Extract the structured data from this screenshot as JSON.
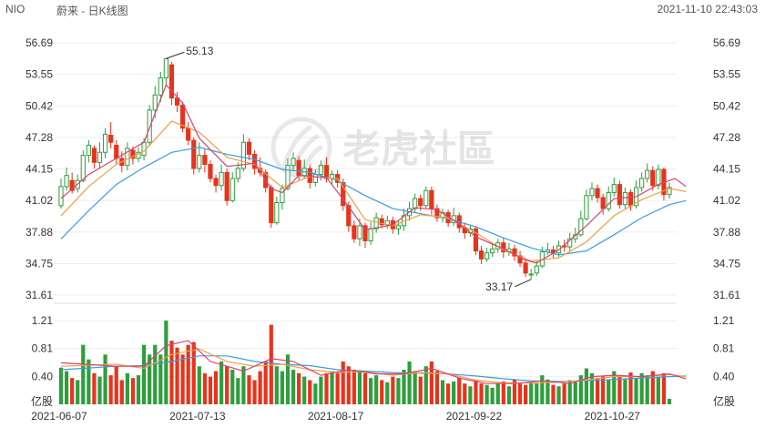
{
  "header": {
    "symbol": "NIO",
    "title": "蔚来 - 日K线图",
    "datetime": "2021-11-10 22:43:03"
  },
  "watermark": {
    "text": "老虎社區",
    "icon": "tiger-claw-logo-icon"
  },
  "colors": {
    "up": "#2e9e3e",
    "down": "#e8331c",
    "ma5": "#d9436e",
    "ma10": "#f0a043",
    "ma20": "#3a9de0",
    "grid": "#eeeeee",
    "axis_text": "#333333"
  },
  "chart_data": {
    "type": "candlestick",
    "price_axis": {
      "ticks": [
        "56.69",
        "53.55",
        "50.42",
        "47.28",
        "44.15",
        "41.02",
        "37.88",
        "34.75",
        "31.61"
      ],
      "range": [
        31.61,
        56.69
      ]
    },
    "volume_axis": {
      "ticks": [
        "1.21",
        "0.81",
        "0.40"
      ],
      "unit": "亿股",
      "range": [
        0,
        1.33
      ]
    },
    "x_ticks": [
      {
        "index": 0,
        "label": "2021-06-07"
      },
      {
        "index": 25,
        "label": "2021-07-13"
      },
      {
        "index": 50,
        "label": "2021-08-17"
      },
      {
        "index": 75,
        "label": "2021-09-22"
      },
      {
        "index": 100,
        "label": "2021-10-27"
      }
    ],
    "annotations": [
      {
        "label": "55.13",
        "index": 19,
        "value": 55.13
      },
      {
        "label": "33.17",
        "index": 85,
        "value": 33.17
      }
    ],
    "candles": [
      [
        40.5,
        42.4,
        43.2,
        40.2,
        0.53
      ],
      [
        42.4,
        43.5,
        44.3,
        42.0,
        0.48
      ],
      [
        43.0,
        42.0,
        43.8,
        41.7,
        0.38
      ],
      [
        42.2,
        43.0,
        43.6,
        41.8,
        0.35
      ],
      [
        43.0,
        45.5,
        46.0,
        42.8,
        0.86
      ],
      [
        45.5,
        46.5,
        47.0,
        44.8,
        0.65
      ],
      [
        46.2,
        44.8,
        46.5,
        44.2,
        0.45
      ],
      [
        44.8,
        45.8,
        46.8,
        44.3,
        0.4
      ],
      [
        45.8,
        47.6,
        48.2,
        45.2,
        0.72
      ],
      [
        47.5,
        46.8,
        48.8,
        46.2,
        0.42
      ],
      [
        46.5,
        45.2,
        47.0,
        44.6,
        0.55
      ],
      [
        45.2,
        44.5,
        45.9,
        43.8,
        0.35
      ],
      [
        44.5,
        46.2,
        46.8,
        44.0,
        0.45
      ],
      [
        46.0,
        45.2,
        46.4,
        44.6,
        0.38
      ],
      [
        45.2,
        45.8,
        46.3,
        44.8,
        0.42
      ],
      [
        45.5,
        46.8,
        47.2,
        45.0,
        0.86
      ],
      [
        46.8,
        50.0,
        50.5,
        46.4,
        0.72
      ],
      [
        50.0,
        51.5,
        52.4,
        49.2,
        0.86
      ],
      [
        51.5,
        53.2,
        53.8,
        50.8,
        0.72
      ],
      [
        53.2,
        55.1,
        55.13,
        52.4,
        1.21
      ],
      [
        54.5,
        51.2,
        54.8,
        50.5,
        0.92
      ],
      [
        51.2,
        50.5,
        51.8,
        49.8,
        0.82
      ],
      [
        50.5,
        48.2,
        50.8,
        47.8,
        0.72
      ],
      [
        48.2,
        47.0,
        48.8,
        46.5,
        0.86
      ],
      [
        47.0,
        44.2,
        47.3,
        43.6,
        0.9
      ],
      [
        44.2,
        45.5,
        46.8,
        43.8,
        0.55
      ],
      [
        45.5,
        44.6,
        46.2,
        43.8,
        0.45
      ],
      [
        44.6,
        43.2,
        45.0,
        42.8,
        0.4
      ],
      [
        43.2,
        42.5,
        43.6,
        41.8,
        0.48
      ],
      [
        42.5,
        43.8,
        44.6,
        42.0,
        0.62
      ],
      [
        43.8,
        41.0,
        44.2,
        40.5,
        0.55
      ],
      [
        41.0,
        43.2,
        43.8,
        40.8,
        0.5
      ],
      [
        43.2,
        44.2,
        44.8,
        42.8,
        0.38
      ],
      [
        44.2,
        46.8,
        47.6,
        43.9,
        0.55
      ],
      [
        46.8,
        45.6,
        47.2,
        45.0,
        0.42
      ],
      [
        45.6,
        44.2,
        46.0,
        43.6,
        0.35
      ],
      [
        44.2,
        43.8,
        45.3,
        43.4,
        0.48
      ],
      [
        43.8,
        42.3,
        44.1,
        41.8,
        0.62
      ],
      [
        42.3,
        38.8,
        42.6,
        38.3,
        1.15
      ],
      [
        38.8,
        40.8,
        41.4,
        38.6,
        0.55
      ],
      [
        40.8,
        42.2,
        42.6,
        40.1,
        0.48
      ],
      [
        42.2,
        44.5,
        45.2,
        42.0,
        0.72
      ],
      [
        44.5,
        45.2,
        45.8,
        44.0,
        0.5
      ],
      [
        45.0,
        43.5,
        45.4,
        43.0,
        0.45
      ],
      [
        43.5,
        44.2,
        45.1,
        43.2,
        0.4
      ],
      [
        44.2,
        42.8,
        44.6,
        42.2,
        0.35
      ],
      [
        42.8,
        43.6,
        44.1,
        42.4,
        0.3
      ],
      [
        43.6,
        44.5,
        45.0,
        43.0,
        0.4
      ],
      [
        44.5,
        43.2,
        45.3,
        42.8,
        0.45
      ],
      [
        43.2,
        43.6,
        44.0,
        42.6,
        0.48
      ],
      [
        43.6,
        42.8,
        44.0,
        42.3,
        0.45
      ],
      [
        42.8,
        40.5,
        43.2,
        40.0,
        0.62
      ],
      [
        40.5,
        38.5,
        40.9,
        37.9,
        0.55
      ],
      [
        38.5,
        37.2,
        39.0,
        36.8,
        0.5
      ],
      [
        37.2,
        38.5,
        39.2,
        36.5,
        0.48
      ],
      [
        38.5,
        37.0,
        38.8,
        36.3,
        0.45
      ],
      [
        37.0,
        38.2,
        38.9,
        36.6,
        0.38
      ],
      [
        38.2,
        39.3,
        39.8,
        37.8,
        0.42
      ],
      [
        39.2,
        38.6,
        39.6,
        38.2,
        0.35
      ],
      [
        38.6,
        39.0,
        39.5,
        38.2,
        0.32
      ],
      [
        39.0,
        38.2,
        39.4,
        37.7,
        0.4
      ],
      [
        38.2,
        38.5,
        39.1,
        37.6,
        0.38
      ],
      [
        38.5,
        39.5,
        40.2,
        38.0,
        0.5
      ],
      [
        39.5,
        40.2,
        40.9,
        39.0,
        0.62
      ],
      [
        40.2,
        41.2,
        41.7,
        39.8,
        0.48
      ],
      [
        41.2,
        40.5,
        41.6,
        40.0,
        0.4
      ],
      [
        40.5,
        42.0,
        42.4,
        40.2,
        0.55
      ],
      [
        42.0,
        40.2,
        42.4,
        39.6,
        0.62
      ],
      [
        40.2,
        39.3,
        40.6,
        38.9,
        0.48
      ],
      [
        39.3,
        39.8,
        40.2,
        38.8,
        0.35
      ],
      [
        39.8,
        38.8,
        40.1,
        38.4,
        0.3
      ],
      [
        38.8,
        39.5,
        40.3,
        38.5,
        0.33
      ],
      [
        39.5,
        38.3,
        39.8,
        37.8,
        0.38
      ],
      [
        38.3,
        37.8,
        38.8,
        37.2,
        0.3
      ],
      [
        37.8,
        38.2,
        38.6,
        37.4,
        0.26
      ],
      [
        38.2,
        36.0,
        38.4,
        35.6,
        0.35
      ],
      [
        36.0,
        35.2,
        36.5,
        34.7,
        0.3
      ],
      [
        35.2,
        35.8,
        36.3,
        34.9,
        0.28
      ],
      [
        35.8,
        36.2,
        36.8,
        35.4,
        0.24
      ],
      [
        36.2,
        36.8,
        37.2,
        35.8,
        0.3
      ],
      [
        36.8,
        35.9,
        37.3,
        35.3,
        0.33
      ],
      [
        35.9,
        36.2,
        36.8,
        35.5,
        0.26
      ],
      [
        36.2,
        35.5,
        36.6,
        35.0,
        0.36
      ],
      [
        35.5,
        34.8,
        36.0,
        34.4,
        0.3
      ],
      [
        34.8,
        33.8,
        35.2,
        33.4,
        0.28
      ],
      [
        33.6,
        33.7,
        34.2,
        33.17,
        0.32
      ],
      [
        33.8,
        34.5,
        35.0,
        33.5,
        0.3
      ],
      [
        34.5,
        35.9,
        36.4,
        34.3,
        0.42
      ],
      [
        35.9,
        36.1,
        36.8,
        35.6,
        0.36
      ],
      [
        36.1,
        35.8,
        36.5,
        35.3,
        0.28
      ],
      [
        35.8,
        36.5,
        37.0,
        35.4,
        0.26
      ],
      [
        36.5,
        36.4,
        37.1,
        35.9,
        0.3
      ],
      [
        36.4,
        37.2,
        37.8,
        36.0,
        0.35
      ],
      [
        37.2,
        37.6,
        38.3,
        36.8,
        0.32
      ],
      [
        37.6,
        39.2,
        40.0,
        37.4,
        0.42
      ],
      [
        39.2,
        41.5,
        42.1,
        39.0,
        0.52
      ],
      [
        41.5,
        42.2,
        42.8,
        41.0,
        0.45
      ],
      [
        42.2,
        41.3,
        42.6,
        40.8,
        0.38
      ],
      [
        41.3,
        40.2,
        41.7,
        39.6,
        0.4
      ],
      [
        40.2,
        41.8,
        42.4,
        39.9,
        0.36
      ],
      [
        41.8,
        42.6,
        43.3,
        41.4,
        0.48
      ],
      [
        42.6,
        40.6,
        43.0,
        40.2,
        0.4
      ],
      [
        40.6,
        41.8,
        42.3,
        40.2,
        0.36
      ],
      [
        41.8,
        40.5,
        42.1,
        40.0,
        0.46
      ],
      [
        40.5,
        42.3,
        43.0,
        40.2,
        0.38
      ],
      [
        42.3,
        43.2,
        43.8,
        41.9,
        0.45
      ],
      [
        43.2,
        44.0,
        44.7,
        42.8,
        0.42
      ],
      [
        44.0,
        42.5,
        44.4,
        42.0,
        0.48
      ],
      [
        42.5,
        44.1,
        44.6,
        42.1,
        0.4
      ],
      [
        44.1,
        41.6,
        44.3,
        41.0,
        0.45
      ],
      [
        41.6,
        42.3,
        42.8,
        41.2,
        0.08
      ]
    ],
    "ma5": [
      [
        0,
        41.2
      ],
      [
        5,
        43.6
      ],
      [
        10,
        45.2
      ],
      [
        15,
        46.8
      ],
      [
        19,
        52.5
      ],
      [
        22,
        50.7
      ],
      [
        25,
        47.2
      ],
      [
        30,
        44.4
      ],
      [
        35,
        44.7
      ],
      [
        38,
        42.2
      ],
      [
        40,
        41.8
      ],
      [
        43,
        43.5
      ],
      [
        48,
        43.3
      ],
      [
        52,
        40.4
      ],
      [
        55,
        38.1
      ],
      [
        60,
        38.6
      ],
      [
        64,
        40.3
      ],
      [
        68,
        40.1
      ],
      [
        72,
        38.7
      ],
      [
        75,
        37.4
      ],
      [
        80,
        36.2
      ],
      [
        84,
        35.1
      ],
      [
        86,
        34.8
      ],
      [
        90,
        36.1
      ],
      [
        95,
        38.5
      ],
      [
        100,
        41.2
      ],
      [
        104,
        41.4
      ],
      [
        108,
        42.6
      ],
      [
        111,
        43.2
      ],
      [
        113,
        42.4
      ]
    ],
    "ma10": [
      [
        0,
        39.5
      ],
      [
        5,
        42.4
      ],
      [
        10,
        44.6
      ],
      [
        15,
        45.9
      ],
      [
        20,
        48.9
      ],
      [
        25,
        47.8
      ],
      [
        30,
        45.3
      ],
      [
        35,
        44.6
      ],
      [
        40,
        42.3
      ],
      [
        45,
        43.4
      ],
      [
        50,
        43.2
      ],
      [
        55,
        39.1
      ],
      [
        60,
        38.5
      ],
      [
        65,
        39.6
      ],
      [
        70,
        39.3
      ],
      [
        75,
        37.8
      ],
      [
        80,
        36.1
      ],
      [
        85,
        35.0
      ],
      [
        90,
        35.3
      ],
      [
        95,
        36.9
      ],
      [
        100,
        39.5
      ],
      [
        105,
        41.1
      ],
      [
        110,
        42.2
      ],
      [
        113,
        41.9
      ]
    ],
    "ma20": [
      [
        0,
        37.2
      ],
      [
        5,
        40.0
      ],
      [
        10,
        42.6
      ],
      [
        15,
        44.3
      ],
      [
        20,
        45.8
      ],
      [
        25,
        46.3
      ],
      [
        30,
        45.6
      ],
      [
        35,
        45.1
      ],
      [
        40,
        44.1
      ],
      [
        45,
        43.8
      ],
      [
        50,
        43.0
      ],
      [
        55,
        41.5
      ],
      [
        60,
        40.2
      ],
      [
        65,
        39.7
      ],
      [
        70,
        39.2
      ],
      [
        75,
        38.4
      ],
      [
        80,
        37.3
      ],
      [
        85,
        36.3
      ],
      [
        90,
        35.6
      ],
      [
        95,
        36.0
      ],
      [
        100,
        37.6
      ],
      [
        105,
        39.3
      ],
      [
        110,
        40.6
      ],
      [
        113,
        41.0
      ]
    ],
    "vol_ma5": [
      [
        0,
        0.6
      ],
      [
        10,
        0.55
      ],
      [
        15,
        0.55
      ],
      [
        19,
        0.85
      ],
      [
        23,
        0.92
      ],
      [
        27,
        0.62
      ],
      [
        33,
        0.48
      ],
      [
        38,
        0.66
      ],
      [
        42,
        0.62
      ],
      [
        47,
        0.42
      ],
      [
        52,
        0.5
      ],
      [
        57,
        0.44
      ],
      [
        62,
        0.44
      ],
      [
        67,
        0.52
      ],
      [
        72,
        0.38
      ],
      [
        77,
        0.3
      ],
      [
        82,
        0.3
      ],
      [
        87,
        0.34
      ],
      [
        92,
        0.3
      ],
      [
        96,
        0.4
      ],
      [
        100,
        0.42
      ],
      [
        105,
        0.4
      ],
      [
        110,
        0.44
      ],
      [
        113,
        0.37
      ]
    ],
    "vol_ma10": [
      [
        0,
        0.55
      ],
      [
        10,
        0.58
      ],
      [
        15,
        0.52
      ],
      [
        20,
        0.72
      ],
      [
        25,
        0.8
      ],
      [
        30,
        0.62
      ],
      [
        35,
        0.55
      ],
      [
        40,
        0.58
      ],
      [
        45,
        0.5
      ],
      [
        50,
        0.46
      ],
      [
        55,
        0.47
      ],
      [
        60,
        0.42
      ],
      [
        65,
        0.46
      ],
      [
        70,
        0.44
      ],
      [
        75,
        0.35
      ],
      [
        80,
        0.31
      ],
      [
        85,
        0.31
      ],
      [
        90,
        0.32
      ],
      [
        95,
        0.35
      ],
      [
        100,
        0.4
      ],
      [
        105,
        0.4
      ],
      [
        110,
        0.43
      ],
      [
        113,
        0.4
      ]
    ],
    "vol_ma20": [
      [
        0,
        0.5
      ],
      [
        10,
        0.55
      ],
      [
        15,
        0.56
      ],
      [
        20,
        0.62
      ],
      [
        25,
        0.7
      ],
      [
        30,
        0.7
      ],
      [
        35,
        0.62
      ],
      [
        40,
        0.58
      ],
      [
        45,
        0.56
      ],
      [
        50,
        0.5
      ],
      [
        55,
        0.48
      ],
      [
        60,
        0.46
      ],
      [
        65,
        0.45
      ],
      [
        70,
        0.44
      ],
      [
        75,
        0.41
      ],
      [
        80,
        0.37
      ],
      [
        85,
        0.34
      ],
      [
        90,
        0.33
      ],
      [
        95,
        0.34
      ],
      [
        100,
        0.36
      ],
      [
        105,
        0.38
      ],
      [
        110,
        0.4
      ],
      [
        113,
        0.41
      ]
    ]
  }
}
